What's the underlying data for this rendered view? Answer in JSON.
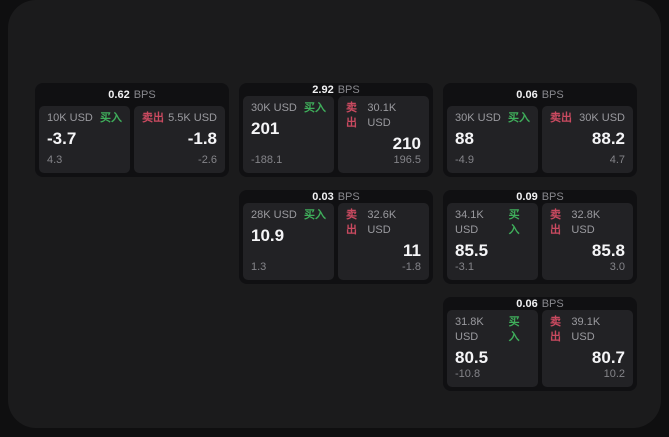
{
  "labels": {
    "bps": "BPS",
    "buy": "买入",
    "sell": "卖出"
  },
  "colors": {
    "outer_background": "#0f0f10",
    "panel_background": "#1b1b1c",
    "card_background": "#101012",
    "tile_background": "#222225",
    "buy_green": "#3fae5b",
    "sell_red": "#ca4a60"
  },
  "cards": [
    {
      "bps": "0.62",
      "buy": {
        "amount": "10K USD",
        "price": "-3.7",
        "delta": "4.3"
      },
      "sell": {
        "amount": "5.5K USD",
        "price": "-1.8",
        "delta": "-2.6"
      }
    },
    {
      "bps": "2.92",
      "buy": {
        "amount": "30K USD",
        "price": "201",
        "delta": "-188.1"
      },
      "sell": {
        "amount": "30.1K USD",
        "price": "210",
        "delta": "196.5"
      }
    },
    {
      "bps": "0.06",
      "buy": {
        "amount": "30K USD",
        "price": "88",
        "delta": "-4.9"
      },
      "sell": {
        "amount": "30K USD",
        "price": "88.2",
        "delta": "4.7"
      }
    },
    {
      "bps": "0.03",
      "buy": {
        "amount": "28K USD",
        "price": "10.9",
        "delta": "1.3"
      },
      "sell": {
        "amount": "32.6K USD",
        "price": "11",
        "delta": "-1.8"
      }
    },
    {
      "bps": "0.09",
      "buy": {
        "amount": "34.1K USD",
        "price": "85.5",
        "delta": "-3.1"
      },
      "sell": {
        "amount": "32.8K USD",
        "price": "85.8",
        "delta": "3.0"
      }
    },
    {
      "bps": "0.06",
      "buy": {
        "amount": "31.8K USD",
        "price": "80.5",
        "delta": "-10.8"
      },
      "sell": {
        "amount": "39.1K USD",
        "price": "80.7",
        "delta": "10.2"
      }
    }
  ]
}
